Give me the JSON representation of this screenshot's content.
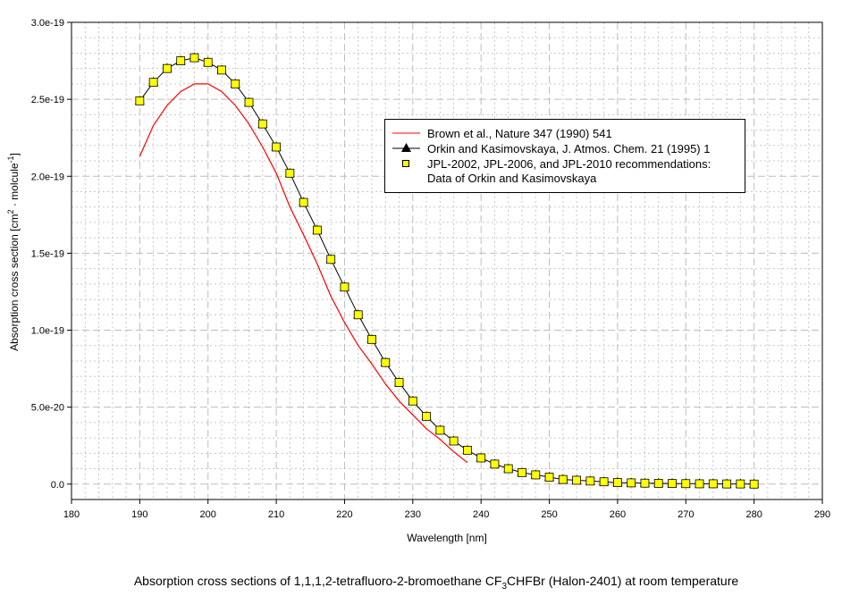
{
  "chart_data": {
    "type": "line",
    "caption": "Absorption cross sections of 1,1,1,2-tetrafluoro-2-bromoethane CF3CHFBr (Halon-2401) at room temperature",
    "caption_parts": {
      "pre": "Absorption cross sections of 1,1,1,2-tetrafluoro-2-bromoethane CF",
      "sub": "3",
      "post": "CHFBr (Halon-2401) at room temperature"
    },
    "xlabel": "Wavelength [nm]",
    "ylabel_parts": {
      "pre": "Absorption cross section [cm",
      "sup1": "2",
      "mid": " · molcule",
      "sup2": "-1",
      "post": "]"
    },
    "ylabel": "Absorption cross section [cm2 · molcule-1]",
    "xlim": [
      180,
      290
    ],
    "ylim": [
      -1e-20,
      3e-19
    ],
    "xticks": [
      180,
      190,
      200,
      210,
      220,
      230,
      240,
      250,
      260,
      270,
      280,
      290
    ],
    "yticks": [
      0,
      5e-20,
      1e-19,
      1.5e-19,
      2e-19,
      2.5e-19,
      3e-19
    ],
    "ytick_labels": [
      "0.0",
      "5.0e-20",
      "1.0e-19",
      "1.5e-19",
      "2.0e-19",
      "2.5e-19",
      "3.0e-19"
    ],
    "grid": true,
    "legend_position": "upper-right",
    "colors": {
      "brown": "#ff0000",
      "orkin": "#000000",
      "jpl_fill": "#ffff00"
    },
    "series": [
      {
        "name": "Brown et al., Nature 347 (1990) 541",
        "style": "line",
        "x": [
          190,
          192,
          194,
          196,
          198,
          200,
          202,
          204,
          206,
          208,
          210,
          212,
          214,
          216,
          218,
          220,
          222,
          224,
          226,
          228,
          230,
          232,
          234,
          236,
          238
        ],
        "y": [
          2.13e-19,
          2.33e-19,
          2.46e-19,
          2.55e-19,
          2.6e-19,
          2.6e-19,
          2.55e-19,
          2.46e-19,
          2.34e-19,
          2.19e-19,
          2.02e-19,
          1.8e-19,
          1.62e-19,
          1.43e-19,
          1.22e-19,
          1.05e-19,
          9e-20,
          7.8e-20,
          6.5e-20,
          5.4e-20,
          4.5e-20,
          3.6e-20,
          2.9e-20,
          2.1e-20,
          1.4e-20
        ]
      },
      {
        "name": "Orkin and Kasimovskaya, J. Atmos. Chem. 21 (1995) 1",
        "style": "line-triangle"
      },
      {
        "name": "JPL-2002, JPL-2006, and JPL-2010 recommendations:",
        "name_line2": "Data of Orkin and Kasimovskaya",
        "style": "square",
        "x": [
          190,
          192,
          194,
          196,
          198,
          200,
          202,
          204,
          206,
          208,
          210,
          212,
          214,
          216,
          218,
          220,
          222,
          224,
          226,
          228,
          230,
          232,
          234,
          236,
          238,
          240,
          242,
          244,
          246,
          248,
          250,
          252,
          254,
          256,
          258,
          260,
          262,
          264,
          266,
          268,
          270,
          272,
          274,
          276,
          278,
          280
        ],
        "y": [
          2.49e-19,
          2.61e-19,
          2.7e-19,
          2.75e-19,
          2.77e-19,
          2.74e-19,
          2.69e-19,
          2.6e-19,
          2.48e-19,
          2.34e-19,
          2.19e-19,
          2.02e-19,
          1.83e-19,
          1.65e-19,
          1.46e-19,
          1.28e-19,
          1.1e-19,
          9.4e-20,
          7.9e-20,
          6.6e-20,
          5.4e-20,
          4.4e-20,
          3.5e-20,
          2.8e-20,
          2.2e-20,
          1.7e-20,
          1.3e-20,
          1e-20,
          7.5e-21,
          6e-21,
          4.5e-21,
          3e-21,
          2.5e-21,
          2e-21,
          1.5e-21,
          1e-21,
          8e-22,
          6e-22,
          5e-22,
          4e-22,
          3e-22,
          2e-22,
          2e-22,
          1e-22,
          1e-22,
          0.0
        ]
      }
    ]
  }
}
